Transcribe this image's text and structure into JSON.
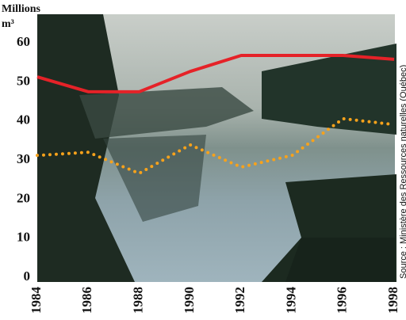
{
  "chart_data": {
    "type": "line",
    "ylabel": [
      "Millions",
      "m³"
    ],
    "source": "Source : Ministère des Ressources naturelles (Québec)",
    "x": [
      1984,
      1986,
      1988,
      1990,
      1992,
      1994,
      1996,
      1998
    ],
    "series": [
      {
        "color": "#e52228",
        "style": "solid",
        "values": [
          51.3,
          47.5,
          47.5,
          52.7,
          56.8,
          56.8,
          56.8,
          55.8
        ]
      },
      {
        "color": "#f7a21b",
        "style": "dotted",
        "values": [
          31.2,
          32,
          26.6,
          33.9,
          28.2,
          31.2,
          40.6,
          39.1
        ]
      }
    ],
    "xlim": [
      1984,
      1998
    ],
    "xticks": [
      1984,
      1986,
      1988,
      1990,
      1992,
      1994,
      1996,
      1998
    ],
    "ylim": [
      0,
      65
    ],
    "yticks": [
      0,
      10,
      20,
      30,
      40,
      50,
      60
    ]
  }
}
